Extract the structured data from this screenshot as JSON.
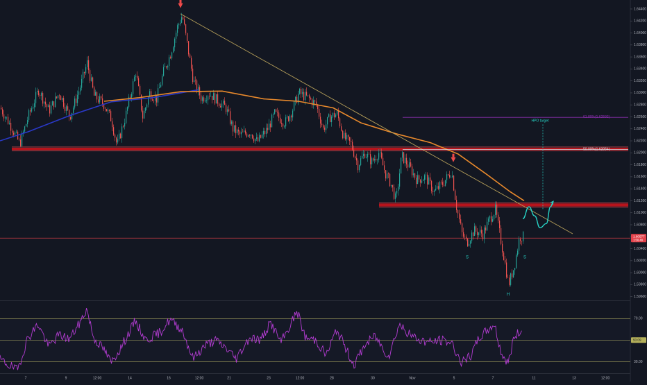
{
  "colors": {
    "background": "#131722",
    "up_candle": "#26a69a",
    "down_candle": "#ef5350",
    "ema_blue": "#2a39c9",
    "ema_orange": "#e8892c",
    "support_band": "#c0141c",
    "trendline": "#b7a05a",
    "rsi_line": "#b43cd3",
    "rsi_band": "#c9c46a",
    "fib_line": "#8c2fb0",
    "projection": "#27d3c6",
    "arrow": "#f04a4a",
    "current_price_line": "#e3424b",
    "axis_text": "#b2b5be"
  },
  "chart_data": [
    {
      "type": "candlestick",
      "symbol_price_axis": {
        "ylim": [
          1.5955,
          1.6455
        ],
        "ticks": [
          "1.64400",
          "1.64200",
          "1.64000",
          "1.63800",
          "1.63600",
          "1.63400",
          "1.63200",
          "1.63000",
          "1.62800",
          "1.62600",
          "1.62400",
          "1.62200",
          "1.62000",
          "1.61800",
          "1.61600",
          "1.61400",
          "1.61200",
          "1.61000",
          "1.60800",
          "1.60600",
          "1.60400",
          "1.60200",
          "1.60000",
          "1.59800",
          "1.59600"
        ],
        "current_price": "1.60577",
        "current_price_sub": "1:56:48"
      },
      "x_axis": {
        "xlim": [
          0,
          932
        ],
        "tick_labels": [
          {
            "label": "7",
            "x": 37
          },
          {
            "label": "9",
            "x": 95
          },
          {
            "label": "12:00",
            "x": 140
          },
          {
            "label": "14",
            "x": 187
          },
          {
            "label": "16",
            "x": 243
          },
          {
            "label": "12:00",
            "x": 287
          },
          {
            "label": "21",
            "x": 330
          },
          {
            "label": "23",
            "x": 387
          },
          {
            "label": "12:00",
            "x": 432
          },
          {
            "label": "28",
            "x": 478
          },
          {
            "label": "30",
            "x": 537
          },
          {
            "label": "Nov",
            "x": 594
          },
          {
            "label": "5",
            "x": 654
          },
          {
            "label": "7",
            "x": 710
          },
          {
            "label": "11",
            "x": 769
          },
          {
            "label": "13",
            "x": 827
          },
          {
            "label": "12:00",
            "x": 872
          }
        ]
      },
      "price_path": [
        [
          0,
          1.6275
        ],
        [
          15,
          1.6245
        ],
        [
          28,
          1.6215
        ],
        [
          40,
          1.626
        ],
        [
          55,
          1.6305
        ],
        [
          70,
          1.627
        ],
        [
          85,
          1.63
        ],
        [
          100,
          1.626
        ],
        [
          115,
          1.631
        ],
        [
          125,
          1.635
        ],
        [
          135,
          1.6295
        ],
        [
          150,
          1.628
        ],
        [
          160,
          1.6255
        ],
        [
          168,
          1.6212
        ],
        [
          180,
          1.626
        ],
        [
          195,
          1.6335
        ],
        [
          205,
          1.626
        ],
        [
          215,
          1.63
        ],
        [
          225,
          1.629
        ],
        [
          235,
          1.6335
        ],
        [
          245,
          1.6365
        ],
        [
          255,
          1.641
        ],
        [
          262,
          1.643
        ],
        [
          270,
          1.6375
        ],
        [
          278,
          1.632
        ],
        [
          290,
          1.629
        ],
        [
          300,
          1.63
        ],
        [
          315,
          1.6285
        ],
        [
          325,
          1.6275
        ],
        [
          335,
          1.624
        ],
        [
          345,
          1.623
        ],
        [
          360,
          1.6235
        ],
        [
          370,
          1.6218
        ],
        [
          385,
          1.624
        ],
        [
          395,
          1.6265
        ],
        [
          410,
          1.625
        ],
        [
          420,
          1.627
        ],
        [
          430,
          1.63
        ],
        [
          445,
          1.629
        ],
        [
          455,
          1.628
        ],
        [
          465,
          1.624
        ],
        [
          475,
          1.626
        ],
        [
          485,
          1.6265
        ],
        [
          495,
          1.6225
        ],
        [
          505,
          1.6215
        ],
        [
          515,
          1.618
        ],
        [
          525,
          1.62
        ],
        [
          535,
          1.6185
        ],
        [
          545,
          1.62
        ],
        [
          555,
          1.6165
        ],
        [
          562,
          1.615
        ],
        [
          570,
          1.612
        ],
        [
          578,
          1.6195
        ],
        [
          590,
          1.6175
        ],
        [
          600,
          1.6155
        ],
        [
          612,
          1.616
        ],
        [
          625,
          1.6135
        ],
        [
          638,
          1.615
        ],
        [
          650,
          1.617
        ],
        [
          657,
          1.611
        ],
        [
          665,
          1.6065
        ],
        [
          672,
          1.605
        ],
        [
          682,
          1.607
        ],
        [
          695,
          1.6065
        ],
        [
          705,
          1.609
        ],
        [
          713,
          1.6105
        ],
        [
          720,
          1.606
        ],
        [
          727,
          1.6015
        ],
        [
          732,
          1.598
        ],
        [
          740,
          1.601
        ],
        [
          748,
          1.606
        ],
        [
          753,
          1.606
        ]
      ],
      "ema_blue_path": [
        [
          0,
          1.622
        ],
        [
          40,
          1.6235
        ],
        [
          100,
          1.6262
        ],
        [
          160,
          1.6285
        ],
        [
          220,
          1.6292
        ],
        [
          260,
          1.63
        ],
        [
          285,
          1.6305
        ]
      ],
      "ema_orange_path": [
        [
          150,
          1.6286
        ],
        [
          200,
          1.6292
        ],
        [
          260,
          1.6302
        ],
        [
          320,
          1.6303
        ],
        [
          380,
          1.629
        ],
        [
          430,
          1.6286
        ],
        [
          480,
          1.6275
        ],
        [
          520,
          1.625
        ],
        [
          570,
          1.6232
        ],
        [
          620,
          1.6217
        ],
        [
          660,
          1.6198
        ],
        [
          700,
          1.6165
        ],
        [
          735,
          1.6135
        ],
        [
          755,
          1.612
        ]
      ],
      "trendline": {
        "from": [
          260,
          1.6432
        ],
        "to": [
          825,
          1.6065
        ]
      },
      "support_zones": [
        {
          "x1": 17,
          "x2": 905,
          "y1": 1.62085,
          "y2": 1.62045
        },
        {
          "x1": 546,
          "x2": 905,
          "y1": 1.61155,
          "y2": 1.61105
        }
      ],
      "fib_levels": [
        {
          "label": "61.80%(1.62592)",
          "price": 1.62592,
          "x1": 580,
          "x2": 905,
          "style": "purple"
        },
        {
          "label": "50.00%(1.62054)",
          "price": 1.62054,
          "x1": 580,
          "x2": 905,
          "style": "white"
        }
      ],
      "target_label": "HPO target",
      "target_line": {
        "x": 782,
        "top": 1.6252,
        "bottom": 1.6105
      },
      "projection_path": [
        [
          753,
          1.609
        ],
        [
          762,
          1.611
        ],
        [
          770,
          1.6095
        ],
        [
          778,
          1.6075
        ],
        [
          787,
          1.6082
        ],
        [
          793,
          1.611
        ],
        [
          797,
          1.6118
        ]
      ],
      "annotations": [
        {
          "label": "S",
          "x": 673,
          "price": 1.6024,
          "kind": "shoulder"
        },
        {
          "label": "S",
          "x": 756,
          "price": 1.6024,
          "kind": "shoulder"
        },
        {
          "label": "H",
          "x": 732,
          "price": 1.5962,
          "kind": "head"
        }
      ],
      "arrows": [
        {
          "x": 260,
          "price": 1.6445
        },
        {
          "x": 653,
          "price": 1.6188
        }
      ]
    },
    {
      "type": "line",
      "title": "RSI",
      "ylim": [
        20,
        85
      ],
      "ticks": [
        "70.00",
        "50.00",
        "30.00"
      ],
      "current_value": "50.09",
      "bands": [
        70,
        50,
        30
      ],
      "series_anchors": [
        [
          0,
          32
        ],
        [
          25,
          22
        ],
        [
          40,
          52
        ],
        [
          55,
          65
        ],
        [
          70,
          44
        ],
        [
          85,
          55
        ],
        [
          100,
          51
        ],
        [
          115,
          66
        ],
        [
          125,
          79
        ],
        [
          135,
          52
        ],
        [
          150,
          41
        ],
        [
          160,
          29
        ],
        [
          175,
          44
        ],
        [
          195,
          68
        ],
        [
          210,
          50
        ],
        [
          230,
          57
        ],
        [
          245,
          69
        ],
        [
          262,
          60
        ],
        [
          278,
          33
        ],
        [
          295,
          45
        ],
        [
          310,
          50
        ],
        [
          325,
          43
        ],
        [
          340,
          33
        ],
        [
          360,
          53
        ],
        [
          375,
          50
        ],
        [
          390,
          66
        ],
        [
          405,
          48
        ],
        [
          415,
          60
        ],
        [
          428,
          77
        ],
        [
          440,
          52
        ],
        [
          455,
          50
        ],
        [
          470,
          36
        ],
        [
          485,
          60
        ],
        [
          500,
          40
        ],
        [
          510,
          27
        ],
        [
          525,
          45
        ],
        [
          540,
          54
        ],
        [
          550,
          44
        ],
        [
          560,
          35
        ],
        [
          575,
          65
        ],
        [
          590,
          55
        ],
        [
          605,
          50
        ],
        [
          620,
          48
        ],
        [
          635,
          50
        ],
        [
          650,
          48
        ],
        [
          665,
          29
        ],
        [
          678,
          35
        ],
        [
          690,
          52
        ],
        [
          700,
          58
        ],
        [
          712,
          65
        ],
        [
          722,
          38
        ],
        [
          732,
          28
        ],
        [
          740,
          52
        ],
        [
          752,
          60
        ]
      ]
    }
  ],
  "labels": {
    "fib_618": "61.80%(1.62592)",
    "fib_50": "50.00%(1.62054)",
    "target": "HPO target",
    "rsi_current": "50.09"
  }
}
